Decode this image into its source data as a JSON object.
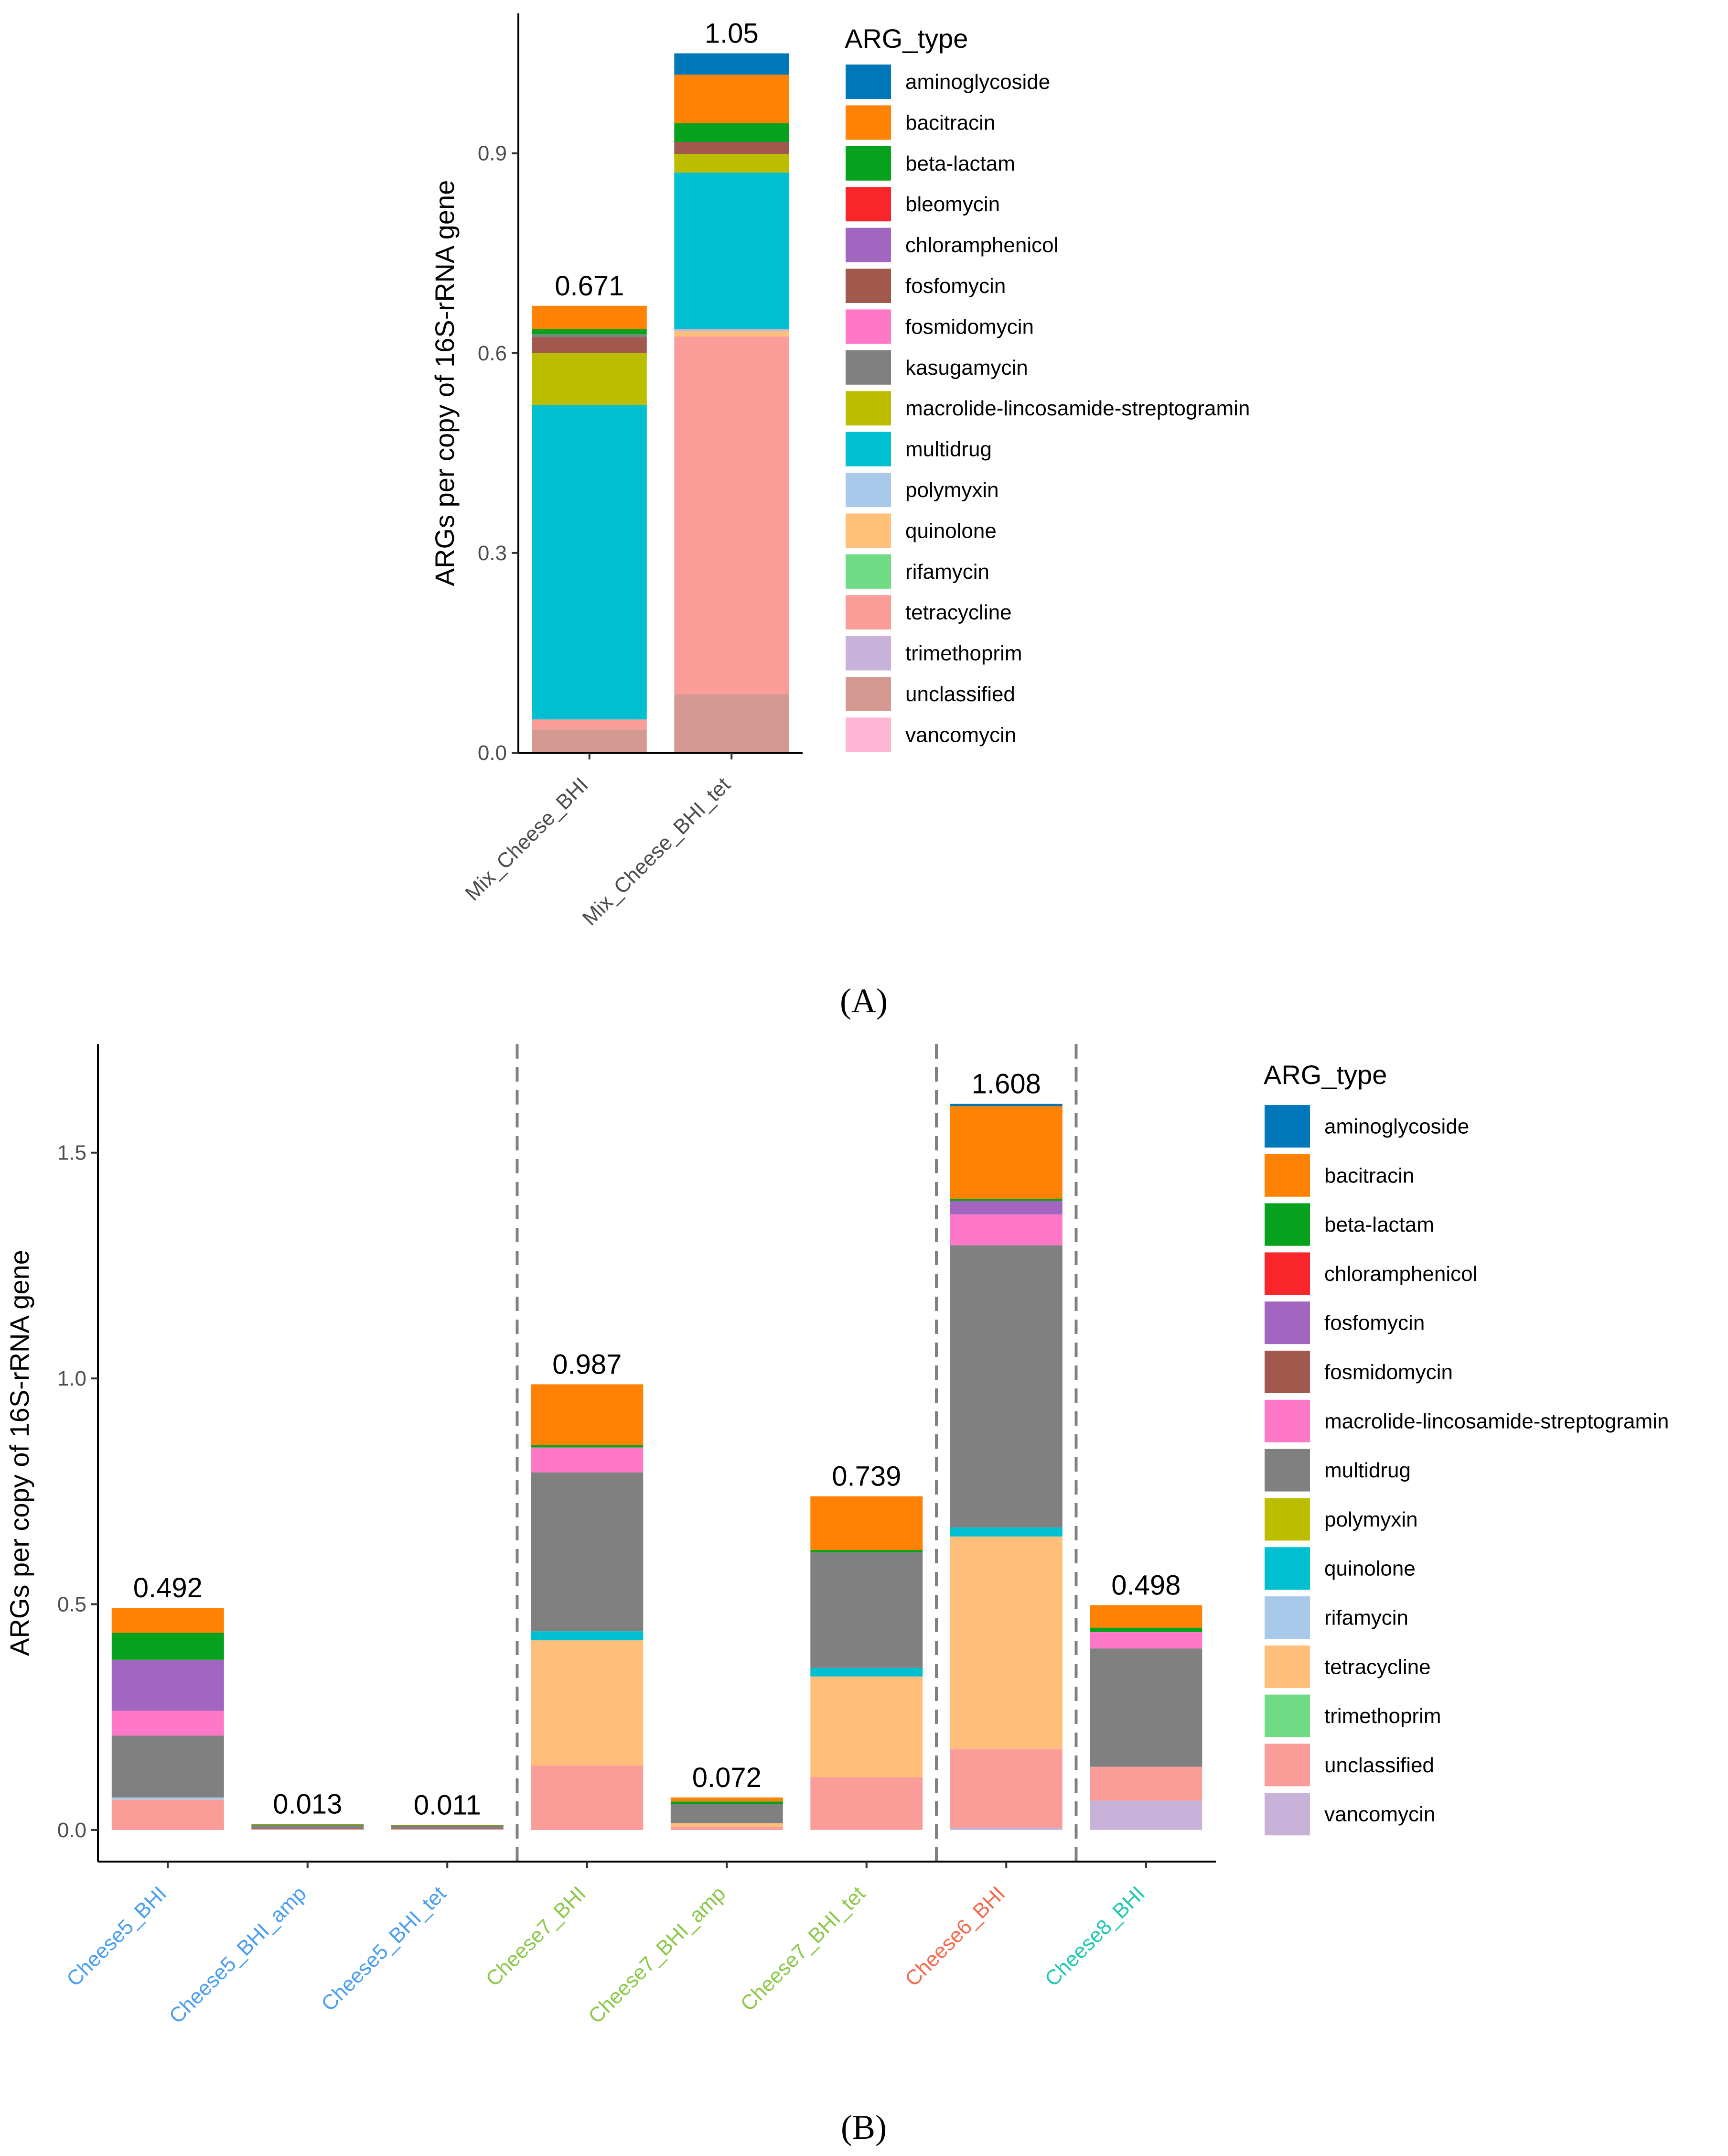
{
  "panels": {
    "a_label": "(A)",
    "b_label": "(B)"
  },
  "chart_data": [
    {
      "type": "bar",
      "stacked": true,
      "panel": "(A)",
      "title": "",
      "xlabel": "",
      "ylabel": "ARGs per copy of 16S-rRNA gene",
      "ylim": [
        0,
        1.11
      ],
      "yticks": [
        0.0,
        0.3,
        0.6,
        0.9
      ],
      "ytick_labels": [
        "0.0",
        "0.3",
        "0.6",
        "0.9"
      ],
      "categories": [
        "Mix_Cheese_BHI",
        "Mix_Cheese_BHI_tet"
      ],
      "category_colors": [
        "#4d4d4d",
        "#4d4d4d"
      ],
      "totals": [
        0.671,
        1.05
      ],
      "total_labels": [
        "0.671",
        "1.05"
      ],
      "legend_title": "ARG_type",
      "legend_position": "right",
      "series": [
        {
          "name": "unclassified",
          "color": "#D49A92",
          "values": [
            0.035,
            0.088
          ]
        },
        {
          "name": "tetracycline",
          "color": "#FA9C98",
          "values": [
            0.015,
            0.537
          ]
        },
        {
          "name": "quinolone",
          "color": "#FFC07A",
          "values": [
            0.0,
            0.008
          ]
        },
        {
          "name": "trimethoprim",
          "color": "#C9B2D9",
          "values": [
            0.0,
            0.003
          ]
        },
        {
          "name": "multidrug",
          "color": "#00BFD1",
          "values": [
            0.472,
            0.235
          ]
        },
        {
          "name": "macrolide-lincosamide-streptogramin",
          "color": "#BDBD00",
          "values": [
            0.078,
            0.028
          ]
        },
        {
          "name": "fosfomycin",
          "color": "#A0594C",
          "values": [
            0.024,
            0.018
          ]
        },
        {
          "name": "kasugamycin",
          "color": "#808080",
          "values": [
            0.004,
            0.0
          ]
        },
        {
          "name": "beta-lactam",
          "color": "#06A21D",
          "values": [
            0.008,
            0.028
          ]
        },
        {
          "name": "bleomycin",
          "color": "#F8262B",
          "values": [
            0.0,
            0.0
          ]
        },
        {
          "name": "chloramphenicol",
          "color": "#A366C0",
          "values": [
            0.0,
            0.0
          ]
        },
        {
          "name": "fosmidomycin",
          "color": "#FF78C8",
          "values": [
            0.0,
            0.0
          ]
        },
        {
          "name": "polymyxin",
          "color": "#A8C9EA",
          "values": [
            0.0,
            0.0
          ]
        },
        {
          "name": "rifamycin",
          "color": "#6FDC85",
          "values": [
            0.0,
            0.0
          ]
        },
        {
          "name": "vancomycin",
          "color": "#FFB6D5",
          "values": [
            0.0,
            0.0
          ]
        },
        {
          "name": "bacitracin",
          "color": "#FF8205",
          "values": [
            0.035,
            0.073
          ]
        },
        {
          "name": "aminoglycoside",
          "color": "#0077B8",
          "values": [
            0.0,
            0.032
          ]
        }
      ],
      "legend": [
        {
          "name": "aminoglycoside",
          "color": "#0077B8"
        },
        {
          "name": "bacitracin",
          "color": "#FF8205"
        },
        {
          "name": "beta-lactam",
          "color": "#06A21D"
        },
        {
          "name": "bleomycin",
          "color": "#F8262B"
        },
        {
          "name": "chloramphenicol",
          "color": "#A366C0"
        },
        {
          "name": "fosfomycin",
          "color": "#A0594C"
        },
        {
          "name": "fosmidomycin",
          "color": "#FF78C8"
        },
        {
          "name": "kasugamycin",
          "color": "#808080"
        },
        {
          "name": "macrolide-lincosamide-streptogramin",
          "color": "#BDBD00"
        },
        {
          "name": "multidrug",
          "color": "#00BFD1"
        },
        {
          "name": "polymyxin",
          "color": "#A8C9EA"
        },
        {
          "name": "quinolone",
          "color": "#FFC07A"
        },
        {
          "name": "rifamycin",
          "color": "#6FDC85"
        },
        {
          "name": "tetracycline",
          "color": "#FA9C98"
        },
        {
          "name": "trimethoprim",
          "color": "#C9B2D9"
        },
        {
          "name": "unclassified",
          "color": "#D49A92"
        },
        {
          "name": "vancomycin",
          "color": "#FFB6D5"
        }
      ],
      "group_dividers_after": []
    },
    {
      "type": "bar",
      "stacked": true,
      "panel": "(B)",
      "title": "",
      "xlabel": "",
      "ylabel": "ARGs per copy of 16S-rRNA gene",
      "ylim": [
        -0.07,
        1.74
      ],
      "yticks": [
        0.0,
        0.5,
        1.0,
        1.5
      ],
      "ytick_labels": [
        "0.0",
        "0.5",
        "1.0",
        "1.5"
      ],
      "categories": [
        "Cheese5_BHI",
        "Cheese5_BHI_amp",
        "Cheese5_BHI_tet",
        "Cheese7_BHI",
        "Cheese7_BHI_amp",
        "Cheese7_BHI_tet",
        "Cheese6_BHI",
        "Cheese8_BHI"
      ],
      "category_colors": [
        "#4A9EF0",
        "#4A9EF0",
        "#4A9EF0",
        "#8CC84B",
        "#8CC84B",
        "#8CC84B",
        "#F26B4E",
        "#1FC9B0"
      ],
      "totals": [
        0.492,
        0.013,
        0.011,
        0.987,
        0.072,
        0.739,
        1.608,
        0.498
      ],
      "total_labels": [
        "0.492",
        "0.013",
        "0.011",
        "0.987",
        "0.072",
        "0.739",
        "1.608",
        "0.498"
      ],
      "legend_title": "ARG_type",
      "legend_position": "right",
      "series": [
        {
          "name": "vancomycin",
          "color": "#C9B2D9",
          "values": [
            0.0,
            0.0,
            0.0,
            0.0,
            0.0,
            0.0,
            0.005,
            0.065
          ]
        },
        {
          "name": "unclassified",
          "color": "#FA9C98",
          "values": [
            0.067,
            0.002,
            0.002,
            0.143,
            0.007,
            0.117,
            0.175,
            0.075
          ]
        },
        {
          "name": "trimethoprim",
          "color": "#6FDC85",
          "values": [
            0.0,
            0.0,
            0.0,
            0.0,
            0.0,
            0.0,
            0.0,
            0.0
          ]
        },
        {
          "name": "tetracycline",
          "color": "#FFBF7A",
          "values": [
            0.0,
            0.0,
            0.0,
            0.277,
            0.008,
            0.223,
            0.47,
            0.0
          ]
        },
        {
          "name": "rifamycin",
          "color": "#A8C9EA",
          "values": [
            0.005,
            0.0,
            0.0,
            0.0,
            0.0,
            0.0,
            0.0,
            0.0
          ]
        },
        {
          "name": "quinolone",
          "color": "#00BFD1",
          "values": [
            0.0,
            0.0,
            0.0,
            0.02,
            0.0,
            0.019,
            0.02,
            0.0
          ]
        },
        {
          "name": "multidrug",
          "color": "#808080",
          "values": [
            0.137,
            0.008,
            0.007,
            0.352,
            0.043,
            0.256,
            0.625,
            0.262
          ]
        },
        {
          "name": "polymyxin",
          "color": "#BDBD00",
          "values": [
            0.0,
            0.0,
            0.0,
            0.0,
            0.0,
            0.0,
            0.0,
            0.0
          ]
        },
        {
          "name": "macrolide-lincosamide-streptogramin",
          "color": "#FF78C8",
          "values": [
            0.055,
            0.0,
            0.0,
            0.055,
            0.0,
            0.0,
            0.068,
            0.036
          ]
        },
        {
          "name": "fosmidomycin",
          "color": "#A0594C",
          "values": [
            0.0,
            0.0,
            0.0,
            0.0,
            0.0,
            0.0,
            0.0,
            0.0
          ]
        },
        {
          "name": "fosfomycin",
          "color": "#A366C0",
          "values": [
            0.113,
            0.0,
            0.0,
            0.0,
            0.0,
            0.0,
            0.03,
            0.0
          ]
        },
        {
          "name": "chloramphenicol",
          "color": "#F8262B",
          "values": [
            0.0,
            0.0,
            0.0,
            0.0,
            0.0,
            0.0,
            0.0,
            0.0
          ]
        },
        {
          "name": "beta-lactam",
          "color": "#06A21D",
          "values": [
            0.06,
            0.002,
            0.001,
            0.005,
            0.005,
            0.005,
            0.005,
            0.01
          ]
        },
        {
          "name": "bacitracin",
          "color": "#FF8205",
          "values": [
            0.055,
            0.001,
            0.001,
            0.135,
            0.009,
            0.119,
            0.205,
            0.05
          ]
        },
        {
          "name": "aminoglycoside",
          "color": "#0077B8",
          "values": [
            0.0,
            0.0,
            0.0,
            0.0,
            0.0,
            0.0,
            0.005,
            0.0
          ]
        }
      ],
      "legend": [
        {
          "name": "aminoglycoside",
          "color": "#0077B8"
        },
        {
          "name": "bacitracin",
          "color": "#FF8205"
        },
        {
          "name": "beta-lactam",
          "color": "#06A21D"
        },
        {
          "name": "chloramphenicol",
          "color": "#F8262B"
        },
        {
          "name": "fosfomycin",
          "color": "#A366C0"
        },
        {
          "name": "fosmidomycin",
          "color": "#A0594C"
        },
        {
          "name": "macrolide-lincosamide-streptogramin",
          "color": "#FF78C8"
        },
        {
          "name": "multidrug",
          "color": "#808080"
        },
        {
          "name": "polymyxin",
          "color": "#BDBD00"
        },
        {
          "name": "quinolone",
          "color": "#00BFD1"
        },
        {
          "name": "rifamycin",
          "color": "#A8C9EA"
        },
        {
          "name": "tetracycline",
          "color": "#FFBF7A"
        },
        {
          "name": "trimethoprim",
          "color": "#6FDC85"
        },
        {
          "name": "unclassified",
          "color": "#FA9C98"
        },
        {
          "name": "vancomycin",
          "color": "#C9B2D9"
        }
      ],
      "group_dividers_after": [
        2,
        5,
        6
      ]
    }
  ]
}
